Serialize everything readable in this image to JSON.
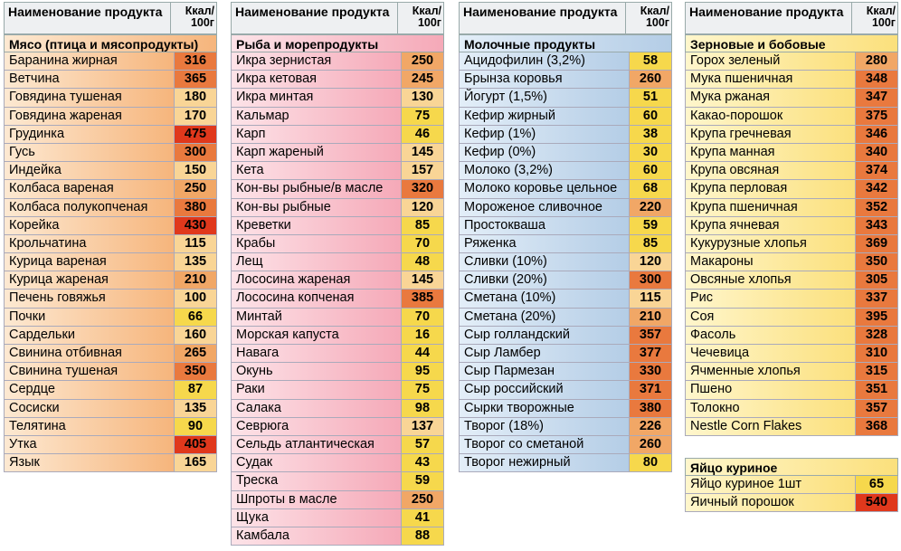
{
  "header": {
    "name": "Наименование продукта",
    "kcal": "Ккал/ 100г"
  },
  "colors": {
    "low": "#f6d84c",
    "mid": "#f9d596",
    "high": "#f1a766",
    "higher": "#e9793e",
    "max": "#e0381c"
  },
  "sections": [
    {
      "cls": "meat",
      "title": "Мясо (птица и мясопродукты)",
      "items": [
        [
          "Баранина жирная",
          "316"
        ],
        [
          "Ветчина",
          "365"
        ],
        [
          "Говядина тушеная",
          "180"
        ],
        [
          "Говядина жареная",
          "170"
        ],
        [
          "Грудинка",
          "475"
        ],
        [
          "Гусь",
          "300"
        ],
        [
          "Индейка",
          "150"
        ],
        [
          "Колбаса вареная",
          "250"
        ],
        [
          "Колбаса полукопченая",
          "380"
        ],
        [
          "Корейка",
          "430"
        ],
        [
          "Крольчатина",
          "115"
        ],
        [
          "Курица вареная",
          "135"
        ],
        [
          "Курица жареная",
          "210"
        ],
        [
          "Печень говяжья",
          "100"
        ],
        [
          "Почки",
          "66"
        ],
        [
          "Сардельки",
          "160"
        ],
        [
          "Свинина отбивная",
          "265"
        ],
        [
          "Свинина тушеная",
          "350"
        ],
        [
          "Сердце",
          "87"
        ],
        [
          "Сосиски",
          "135"
        ],
        [
          "Телятина",
          "90"
        ],
        [
          "Утка",
          "405"
        ],
        [
          "Язык",
          "165"
        ]
      ]
    },
    {
      "cls": "fish",
      "title": "Рыба и морепродукты",
      "items": [
        [
          "Икра зернистая",
          "250"
        ],
        [
          "Икра кетовая",
          "245"
        ],
        [
          "Икра минтая",
          "130"
        ],
        [
          "Кальмар",
          "75"
        ],
        [
          "Карп",
          "46"
        ],
        [
          "Карп жареный",
          "145"
        ],
        [
          "Кета",
          "157"
        ],
        [
          "Кон-вы рыбные/в масле",
          "320"
        ],
        [
          "Кон-вы рыбные",
          "120"
        ],
        [
          "Креветки",
          "85"
        ],
        [
          "Крабы",
          "70"
        ],
        [
          "Лещ",
          "48"
        ],
        [
          "Лососина жареная",
          "145"
        ],
        [
          "Лососина копченая",
          "385"
        ],
        [
          "Минтай",
          "70"
        ],
        [
          "Морская капуста",
          "16"
        ],
        [
          "Навага",
          "44"
        ],
        [
          "Окунь",
          "95"
        ],
        [
          "Раки",
          "75"
        ],
        [
          "Салака",
          "98"
        ],
        [
          "Севрюга",
          "137"
        ],
        [
          "Сельдь атлантическая",
          "57"
        ],
        [
          "Судак",
          "43"
        ],
        [
          "Треска",
          "59"
        ],
        [
          "Шпроты в масле",
          "250"
        ],
        [
          "Щука",
          "41"
        ],
        [
          "Камбала",
          "88"
        ]
      ]
    },
    {
      "cls": "dairy",
      "title": "Молочные продукты",
      "items": [
        [
          "Ацидофилин (3,2%)",
          "58"
        ],
        [
          "Брынза коровья",
          "260"
        ],
        [
          "Йогурт (1,5%)",
          "51"
        ],
        [
          "Кефир жирный",
          "60"
        ],
        [
          "Кефир (1%)",
          "38"
        ],
        [
          "Кефир (0%)",
          "30"
        ],
        [
          "Молоко (3,2%)",
          "60"
        ],
        [
          "Молоко коровье цельное",
          "68"
        ],
        [
          "Мороженое сливочное",
          "220"
        ],
        [
          "Простокваша",
          "59"
        ],
        [
          "Ряженка",
          "85"
        ],
        [
          "Сливки (10%)",
          "120"
        ],
        [
          "Сливки (20%)",
          "300"
        ],
        [
          "Сметана (10%)",
          "115"
        ],
        [
          "Сметана (20%)",
          "210"
        ],
        [
          "Сыр голландский",
          "357"
        ],
        [
          "Сыр Ламбер",
          "377"
        ],
        [
          "Сыр Пармезан",
          "330"
        ],
        [
          "Сыр российский",
          "371"
        ],
        [
          "Сырки творожные",
          "380"
        ],
        [
          "Творог (18%)",
          "226"
        ],
        [
          "Творог со сметаной",
          "260"
        ],
        [
          "Творог нежирный",
          "80"
        ]
      ]
    },
    {
      "cls": "grain",
      "title": "Зерновые и бобовые",
      "items": [
        [
          "Горох зеленый",
          "280"
        ],
        [
          "Мука пшеничная",
          "348"
        ],
        [
          "Мука ржаная",
          "347"
        ],
        [
          "Какао-порошок",
          "375"
        ],
        [
          "Крупа гречневая",
          "346"
        ],
        [
          "Крупа манная",
          "340"
        ],
        [
          "Крупа овсяная",
          "374"
        ],
        [
          "Крупа перловая",
          "342"
        ],
        [
          "Крупа пшеничная",
          "352"
        ],
        [
          "Крупа ячневая",
          "343"
        ],
        [
          "Кукурузные хлопья",
          "369"
        ],
        [
          "Макароны",
          "350"
        ],
        [
          "Овсяные хлопья",
          "305"
        ],
        [
          "Рис",
          "337"
        ],
        [
          "Соя",
          "395"
        ],
        [
          "Фасоль",
          "328"
        ],
        [
          "Чечевица",
          "310"
        ],
        [
          "Ячменные хлопья",
          "315"
        ],
        [
          "Пшено",
          "351"
        ],
        [
          "Толокно",
          "357"
        ],
        [
          "Nestle Corn Flakes",
          "368"
        ]
      ]
    },
    {
      "cls": "egg",
      "title": "Яйцо куриное",
      "items": [
        [
          "Яйцо куриное 1шт",
          "65"
        ],
        [
          "Яичный порошок",
          "540"
        ]
      ]
    }
  ]
}
